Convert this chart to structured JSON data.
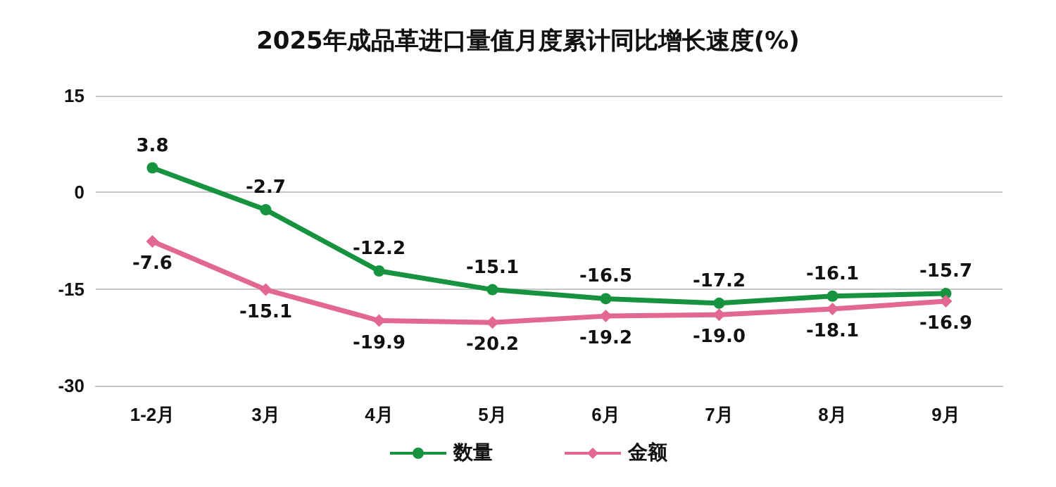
{
  "chart_data": {
    "type": "line",
    "title": "2025年成品革进口量值月度累计同比增长速度(%)",
    "categories": [
      "1-2月",
      "3月",
      "4月",
      "5月",
      "6月",
      "7月",
      "8月",
      "9月"
    ],
    "series": [
      {
        "name": "数量",
        "color": "#17933f",
        "marker": "circle",
        "values": [
          3.8,
          -2.7,
          -12.2,
          -15.1,
          -16.5,
          -17.2,
          -16.1,
          -15.7
        ],
        "value_labels": [
          "3.8",
          "-2.7",
          "-12.2",
          "-15.1",
          "-16.5",
          "-17.2",
          "-16.1",
          "-15.7"
        ]
      },
      {
        "name": "金额",
        "color": "#e2688f",
        "marker": "diamond",
        "values": [
          -7.6,
          -15.1,
          -19.9,
          -20.2,
          -19.2,
          -19.0,
          -18.1,
          -16.9
        ],
        "value_labels": [
          "-7.6",
          "-15.1",
          "-19.9",
          "-20.2",
          "-19.2",
          "-19.0",
          "-18.1",
          "-16.9"
        ]
      }
    ],
    "ylim": [
      -30,
      15
    ],
    "yticks": [
      -30,
      -15,
      0,
      15
    ],
    "grid": "y",
    "legend": "bottom"
  }
}
